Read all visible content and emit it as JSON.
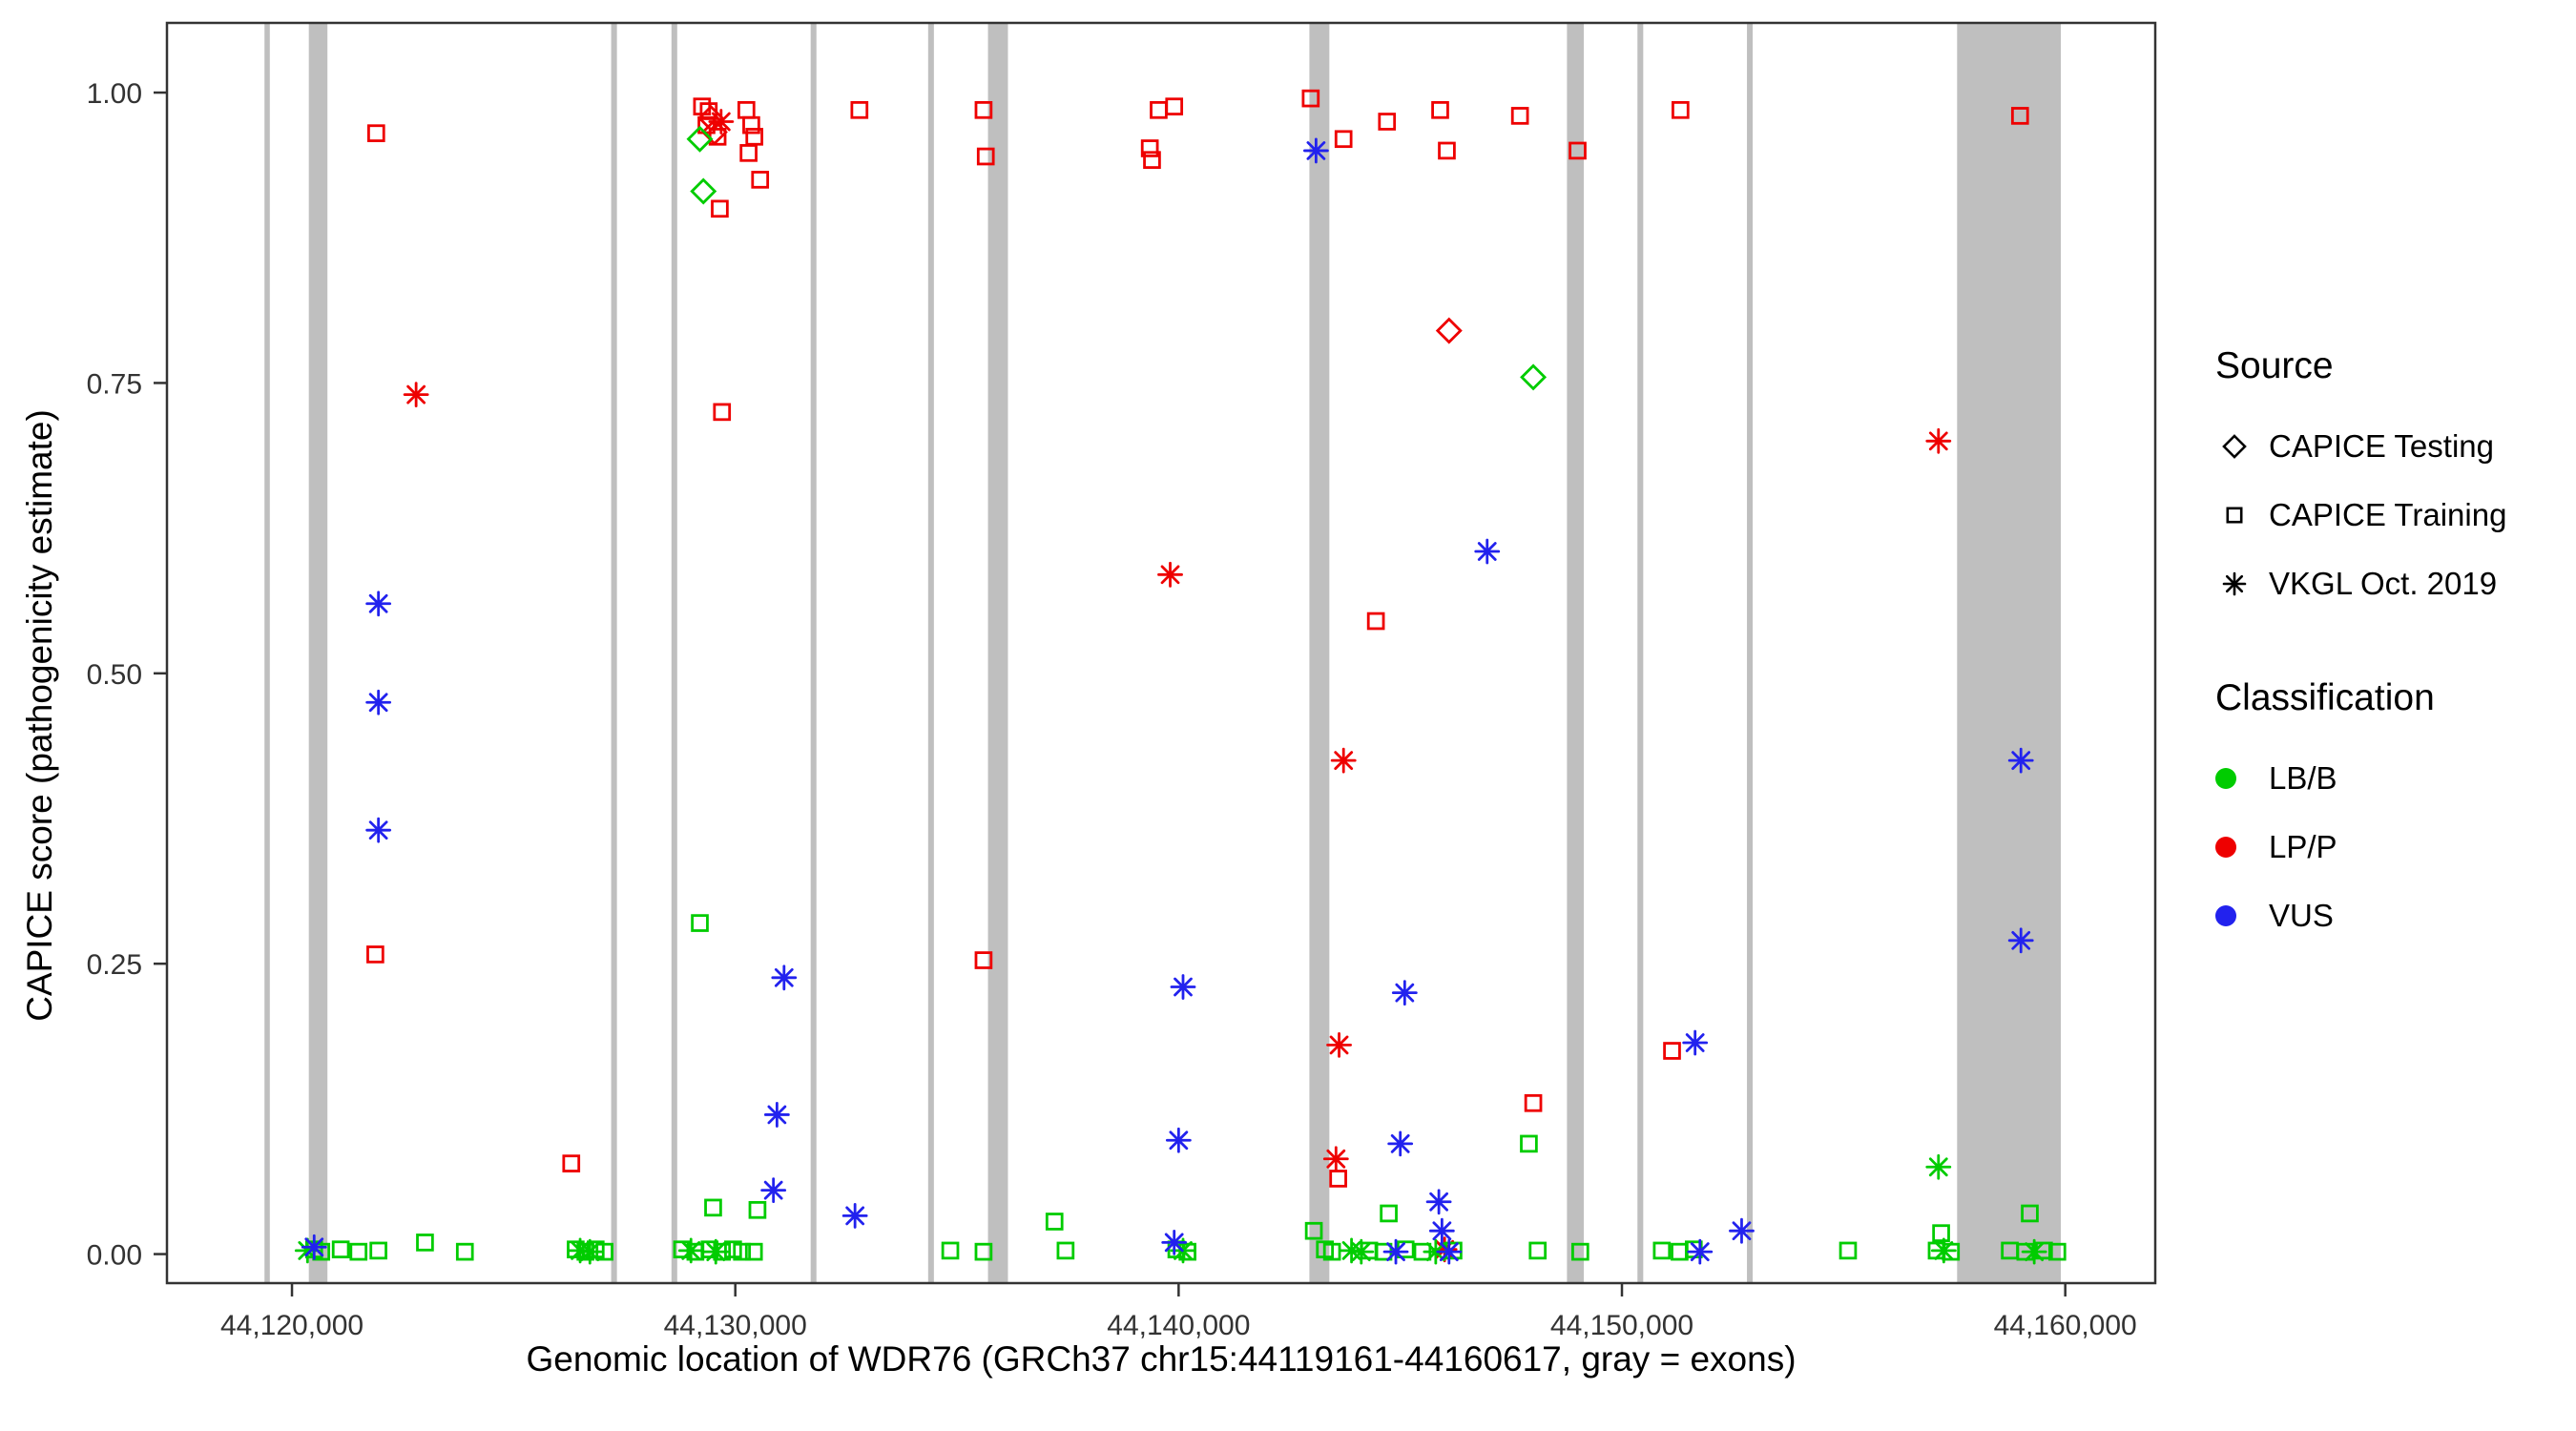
{
  "chart_data": {
    "type": "scatter",
    "title": "",
    "xlabel": "Genomic location of WDR76 (GRCh37 chr15:44119161-44160617, gray = exons)",
    "ylabel": "CAPICE score (pathogenicity estimate)",
    "xlim": [
      44117180,
      44162030
    ],
    "ylim": [
      -0.025,
      1.06
    ],
    "x_ticks": [
      44120000,
      44130000,
      44140000,
      44150000,
      44160000
    ],
    "x_tick_labels": [
      "44,120,000",
      "44,130,000",
      "44,140,000",
      "44,150,000",
      "44,160,000"
    ],
    "y_ticks": [
      0.0,
      0.25,
      0.5,
      0.75,
      1.0
    ],
    "y_tick_labels": [
      "0.00",
      "0.25",
      "0.50",
      "0.75",
      "1.00"
    ],
    "grid": false,
    "exon_color": "#BFBFBF",
    "exons": [
      [
        44119380,
        44119500
      ],
      [
        44120380,
        44120800
      ],
      [
        44127200,
        44127330
      ],
      [
        44128560,
        44128690
      ],
      [
        44131700,
        44131830
      ],
      [
        44134350,
        44134480
      ],
      [
        44135700,
        44136150
      ],
      [
        44142950,
        44143400
      ],
      [
        44148760,
        44149140
      ],
      [
        44150350,
        44150480
      ],
      [
        44152820,
        44152950
      ],
      [
        44157560,
        44159900
      ]
    ],
    "class_colors": {
      "LB/B": "#00CC00",
      "LP/P": "#EE0000",
      "VUS": "#2222EE"
    },
    "source_shapes": {
      "CAPICE Testing": "diamond",
      "CAPICE Training": "square",
      "VKGL Oct. 2019": "asterisk"
    },
    "legend": {
      "source_title": "Source",
      "sources": [
        {
          "label": "CAPICE Testing",
          "shape": "diamond"
        },
        {
          "label": "CAPICE Training",
          "shape": "square"
        },
        {
          "label": "VKGL Oct. 2019",
          "shape": "asterisk"
        }
      ],
      "classification_title": "Classification",
      "classes": [
        {
          "label": "LB/B",
          "color": "#00CC00"
        },
        {
          "label": "LP/P",
          "color": "#EE0000"
        },
        {
          "label": "VUS",
          "color": "#2222EE"
        }
      ]
    },
    "points": [
      [
        44121900,
        0.965,
        "CAPICE Training",
        "LP/P"
      ],
      [
        44121880,
        0.258,
        "CAPICE Training",
        "LP/P"
      ],
      [
        44126300,
        0.078,
        "CAPICE Training",
        "LP/P"
      ],
      [
        44129250,
        0.988,
        "CAPICE Training",
        "LP/P"
      ],
      [
        44129400,
        0.984,
        "CAPICE Training",
        "LP/P"
      ],
      [
        44129350,
        0.972,
        "CAPICE Training",
        "LP/P"
      ],
      [
        44129600,
        0.962,
        "CAPICE Training",
        "LP/P"
      ],
      [
        44129650,
        0.9,
        "CAPICE Training",
        "LP/P"
      ],
      [
        44129700,
        0.725,
        "CAPICE Training",
        "LP/P"
      ],
      [
        44130250,
        0.985,
        "CAPICE Training",
        "LP/P"
      ],
      [
        44130360,
        0.972,
        "CAPICE Training",
        "LP/P"
      ],
      [
        44130430,
        0.962,
        "CAPICE Training",
        "LP/P"
      ],
      [
        44130300,
        0.948,
        "CAPICE Training",
        "LP/P"
      ],
      [
        44130560,
        0.925,
        "CAPICE Training",
        "LP/P"
      ],
      [
        44132800,
        0.985,
        "CAPICE Training",
        "LP/P"
      ],
      [
        44135600,
        0.985,
        "CAPICE Training",
        "LP/P"
      ],
      [
        44135650,
        0.945,
        "CAPICE Training",
        "LP/P"
      ],
      [
        44135600,
        0.253,
        "CAPICE Training",
        "LP/P"
      ],
      [
        44139350,
        0.952,
        "CAPICE Training",
        "LP/P"
      ],
      [
        44139400,
        0.942,
        "CAPICE Training",
        "LP/P"
      ],
      [
        44139550,
        0.985,
        "CAPICE Training",
        "LP/P"
      ],
      [
        44139900,
        0.988,
        "CAPICE Training",
        "LP/P"
      ],
      [
        44142980,
        0.995,
        "CAPICE Training",
        "LP/P"
      ],
      [
        44143720,
        0.96,
        "CAPICE Training",
        "LP/P"
      ],
      [
        44144700,
        0.975,
        "CAPICE Training",
        "LP/P"
      ],
      [
        44144450,
        0.545,
        "CAPICE Training",
        "LP/P"
      ],
      [
        44143600,
        0.065,
        "CAPICE Training",
        "LP/P"
      ],
      [
        44145900,
        0.985,
        "CAPICE Training",
        "LP/P"
      ],
      [
        44146050,
        0.95,
        "CAPICE Training",
        "LP/P"
      ],
      [
        44147700,
        0.98,
        "CAPICE Training",
        "LP/P"
      ],
      [
        44148000,
        0.13,
        "CAPICE Training",
        "LP/P"
      ],
      [
        44149000,
        0.95,
        "CAPICE Training",
        "LP/P"
      ],
      [
        44151320,
        0.985,
        "CAPICE Training",
        "LP/P"
      ],
      [
        44151130,
        0.175,
        "CAPICE Training",
        "LP/P"
      ],
      [
        44158980,
        0.98,
        "CAPICE Training",
        "LP/P"
      ],
      [
        44129450,
        0.978,
        "CAPICE Testing",
        "LP/P"
      ],
      [
        44129530,
        0.966,
        "CAPICE Testing",
        "LP/P"
      ],
      [
        44146100,
        0.795,
        "CAPICE Testing",
        "LP/P"
      ],
      [
        44122800,
        0.74,
        "VKGL Oct. 2019",
        "LP/P"
      ],
      [
        44129680,
        0.975,
        "VKGL Oct. 2019",
        "LP/P"
      ],
      [
        44139810,
        0.585,
        "VKGL Oct. 2019",
        "LP/P"
      ],
      [
        44143720,
        0.425,
        "VKGL Oct. 2019",
        "LP/P"
      ],
      [
        44143620,
        0.18,
        "VKGL Oct. 2019",
        "LP/P"
      ],
      [
        44143550,
        0.082,
        "VKGL Oct. 2019",
        "LP/P"
      ],
      [
        44146000,
        0.004,
        "VKGL Oct. 2019",
        "LP/P"
      ],
      [
        44157140,
        0.7,
        "VKGL Oct. 2019",
        "LP/P"
      ],
      [
        44129200,
        0.96,
        "CAPICE Testing",
        "LB/B"
      ],
      [
        44129280,
        0.915,
        "CAPICE Testing",
        "LB/B"
      ],
      [
        44148000,
        0.755,
        "CAPICE Testing",
        "LB/B"
      ],
      [
        44129200,
        0.285,
        "CAPICE Training",
        "LB/B"
      ],
      [
        44129500,
        0.04,
        "CAPICE Training",
        "LB/B"
      ],
      [
        44130500,
        0.038,
        "CAPICE Training",
        "LB/B"
      ],
      [
        44137200,
        0.028,
        "CAPICE Training",
        "LB/B"
      ],
      [
        44144740,
        0.035,
        "CAPICE Training",
        "LB/B"
      ],
      [
        44147900,
        0.095,
        "CAPICE Training",
        "LB/B"
      ],
      [
        44159200,
        0.035,
        "CAPICE Training",
        "LB/B"
      ],
      [
        44143050,
        0.02,
        "CAPICE Training",
        "LB/B"
      ],
      [
        44157200,
        0.018,
        "CAPICE Training",
        "LB/B"
      ],
      [
        44120500,
        0.004,
        "CAPICE Training",
        "LB/B"
      ],
      [
        44120660,
        0.002,
        "CAPICE Training",
        "LB/B"
      ],
      [
        44121100,
        0.004,
        "CAPICE Training",
        "LB/B"
      ],
      [
        44121500,
        0.002,
        "CAPICE Training",
        "LB/B"
      ],
      [
        44121950,
        0.003,
        "CAPICE Training",
        "LB/B"
      ],
      [
        44123000,
        0.01,
        "CAPICE Training",
        "LB/B"
      ],
      [
        44123900,
        0.002,
        "CAPICE Training",
        "LB/B"
      ],
      [
        44126400,
        0.004,
        "CAPICE Training",
        "LB/B"
      ],
      [
        44126620,
        0.002,
        "CAPICE Training",
        "LB/B"
      ],
      [
        44126850,
        0.004,
        "CAPICE Training",
        "LB/B"
      ],
      [
        44127050,
        0.002,
        "CAPICE Training",
        "LB/B"
      ],
      [
        44128800,
        0.004,
        "CAPICE Training",
        "LB/B"
      ],
      [
        44129100,
        0.002,
        "CAPICE Training",
        "LB/B"
      ],
      [
        44129420,
        0.004,
        "CAPICE Training",
        "LB/B"
      ],
      [
        44129700,
        0.002,
        "CAPICE Training",
        "LB/B"
      ],
      [
        44129950,
        0.004,
        "CAPICE Training",
        "LB/B"
      ],
      [
        44130150,
        0.002,
        "CAPICE Training",
        "LB/B"
      ],
      [
        44130420,
        0.002,
        "CAPICE Training",
        "LB/B"
      ],
      [
        44134850,
        0.003,
        "CAPICE Training",
        "LB/B"
      ],
      [
        44135600,
        0.002,
        "CAPICE Training",
        "LB/B"
      ],
      [
        44137450,
        0.003,
        "CAPICE Training",
        "LB/B"
      ],
      [
        44139950,
        0.004,
        "CAPICE Training",
        "LB/B"
      ],
      [
        44140200,
        0.002,
        "CAPICE Training",
        "LB/B"
      ],
      [
        44143300,
        0.004,
        "CAPICE Training",
        "LB/B"
      ],
      [
        44143460,
        0.002,
        "CAPICE Training",
        "LB/B"
      ],
      [
        44144300,
        0.003,
        "CAPICE Training",
        "LB/B"
      ],
      [
        44144620,
        0.002,
        "CAPICE Training",
        "LB/B"
      ],
      [
        44145120,
        0.004,
        "CAPICE Training",
        "LB/B"
      ],
      [
        44145500,
        0.002,
        "CAPICE Training",
        "LB/B"
      ],
      [
        44146200,
        0.003,
        "CAPICE Training",
        "LB/B"
      ],
      [
        44148100,
        0.003,
        "CAPICE Training",
        "LB/B"
      ],
      [
        44149060,
        0.002,
        "CAPICE Training",
        "LB/B"
      ],
      [
        44150900,
        0.003,
        "CAPICE Training",
        "LB/B"
      ],
      [
        44151300,
        0.002,
        "CAPICE Training",
        "LB/B"
      ],
      [
        44151620,
        0.004,
        "CAPICE Training",
        "LB/B"
      ],
      [
        44155100,
        0.003,
        "CAPICE Training",
        "LB/B"
      ],
      [
        44157100,
        0.003,
        "CAPICE Training",
        "LB/B"
      ],
      [
        44157420,
        0.002,
        "CAPICE Training",
        "LB/B"
      ],
      [
        44158750,
        0.003,
        "CAPICE Training",
        "LB/B"
      ],
      [
        44159100,
        0.002,
        "CAPICE Training",
        "LB/B"
      ],
      [
        44159520,
        0.003,
        "CAPICE Training",
        "LB/B"
      ],
      [
        44159820,
        0.002,
        "CAPICE Training",
        "LB/B"
      ],
      [
        44120350,
        0.003,
        "VKGL Oct. 2019",
        "LB/B"
      ],
      [
        44126500,
        0.003,
        "VKGL Oct. 2019",
        "LB/B"
      ],
      [
        44126720,
        0.002,
        "VKGL Oct. 2019",
        "LB/B"
      ],
      [
        44129000,
        0.003,
        "VKGL Oct. 2019",
        "LB/B"
      ],
      [
        44129560,
        0.002,
        "VKGL Oct. 2019",
        "LB/B"
      ],
      [
        44140100,
        0.003,
        "VKGL Oct. 2019",
        "LB/B"
      ],
      [
        44143900,
        0.003,
        "VKGL Oct. 2019",
        "LB/B"
      ],
      [
        44144120,
        0.002,
        "VKGL Oct. 2019",
        "LB/B"
      ],
      [
        44145800,
        0.002,
        "VKGL Oct. 2019",
        "LB/B"
      ],
      [
        44157140,
        0.075,
        "VKGL Oct. 2019",
        "LB/B"
      ],
      [
        44157260,
        0.003,
        "VKGL Oct. 2019",
        "LB/B"
      ],
      [
        44159300,
        0.002,
        "VKGL Oct. 2019",
        "LB/B"
      ],
      [
        44120500,
        0.006,
        "VKGL Oct. 2019",
        "VUS"
      ],
      [
        44121950,
        0.56,
        "VKGL Oct. 2019",
        "VUS"
      ],
      [
        44121950,
        0.475,
        "VKGL Oct. 2019",
        "VUS"
      ],
      [
        44121950,
        0.365,
        "VKGL Oct. 2019",
        "VUS"
      ],
      [
        44131100,
        0.238,
        "VKGL Oct. 2019",
        "VUS"
      ],
      [
        44130940,
        0.12,
        "VKGL Oct. 2019",
        "VUS"
      ],
      [
        44130860,
        0.055,
        "VKGL Oct. 2019",
        "VUS"
      ],
      [
        44132700,
        0.033,
        "VKGL Oct. 2019",
        "VUS"
      ],
      [
        44139900,
        0.01,
        "VKGL Oct. 2019",
        "VUS"
      ],
      [
        44140100,
        0.23,
        "VKGL Oct. 2019",
        "VUS"
      ],
      [
        44140000,
        0.098,
        "VKGL Oct. 2019",
        "VUS"
      ],
      [
        44143100,
        0.95,
        "VKGL Oct. 2019",
        "VUS"
      ],
      [
        44145100,
        0.225,
        "VKGL Oct. 2019",
        "VUS"
      ],
      [
        44145000,
        0.095,
        "VKGL Oct. 2019",
        "VUS"
      ],
      [
        44145870,
        0.045,
        "VKGL Oct. 2019",
        "VUS"
      ],
      [
        44145940,
        0.02,
        "VKGL Oct. 2019",
        "VUS"
      ],
      [
        44146100,
        0.002,
        "VKGL Oct. 2019",
        "VUS"
      ],
      [
        44144900,
        0.002,
        "VKGL Oct. 2019",
        "VUS"
      ],
      [
        44146960,
        0.605,
        "VKGL Oct. 2019",
        "VUS"
      ],
      [
        44151650,
        0.182,
        "VKGL Oct. 2019",
        "VUS"
      ],
      [
        44151760,
        0.002,
        "VKGL Oct. 2019",
        "VUS"
      ],
      [
        44152700,
        0.02,
        "VKGL Oct. 2019",
        "VUS"
      ],
      [
        44159000,
        0.425,
        "VKGL Oct. 2019",
        "VUS"
      ],
      [
        44159000,
        0.27,
        "VKGL Oct. 2019",
        "VUS"
      ]
    ]
  }
}
